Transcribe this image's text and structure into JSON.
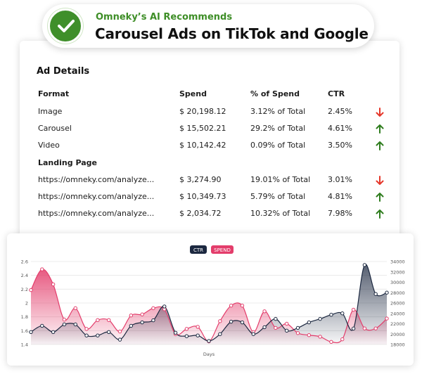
{
  "header": {
    "kicker": "Omneky’s AI Recommends",
    "title": "Carousel Ads on TikTok and Google"
  },
  "ad_details": {
    "title": "Ad Details",
    "columns": [
      "Format",
      "Spend",
      "% of Spend",
      "CTR"
    ],
    "rows": [
      {
        "name": "Image",
        "spend": "$ 20,198.12",
        "pct": "3.12% of Total",
        "ctr": "2.45%",
        "trend": "down"
      },
      {
        "name": "Carousel",
        "spend": "$ 15,502.21",
        "pct": "29.2% of Total",
        "ctr": "4.61%",
        "trend": "up"
      },
      {
        "name": "Video",
        "spend": "$ 10,142.42",
        "pct": "0.09% of Total",
        "ctr": "3.50%",
        "trend": "up"
      }
    ],
    "landing_label": "Landing Page",
    "landing_rows": [
      {
        "name": "https://omneky.com/analyze...",
        "spend": "$ 3,274.90",
        "pct": "19.01% of Total",
        "ctr": "3.01%",
        "trend": "down"
      },
      {
        "name": "https://omneky.com/analyze...",
        "spend": "$ 10,349.73",
        "pct": "5.79% of Total",
        "ctr": "4.81%",
        "trend": "up"
      },
      {
        "name": "https://omneky.com/analyze...",
        "spend": "$ 2,034.72",
        "pct": "10.32% of Total",
        "ctr": "7.98%",
        "trend": "up"
      }
    ]
  },
  "colors": {
    "up": "#2f7d1e",
    "down": "#e5372a",
    "ctr": "#1c2840",
    "spend": "#e33d6b",
    "check": "#3f8f2a"
  },
  "chart_data": {
    "type": "area",
    "xlabel": "Days",
    "ylabel": "",
    "legend": [
      "CTR",
      "SPEND"
    ],
    "legend_position": "top-center",
    "grid": true,
    "ylim_left": [
      1.4,
      2.6
    ],
    "yticks_left": [
      "2.6",
      "2.4",
      "2.2",
      "2",
      "1.8",
      "1.6",
      "1.4"
    ],
    "ylim_right": [
      18000,
      34000
    ],
    "yticks_right": [
      "34000",
      "32000",
      "30000",
      "28000",
      "26000",
      "24000",
      "22000",
      "20000",
      "18000"
    ],
    "series": [
      {
        "name": "CTR",
        "axis": "left",
        "values": [
          1.58,
          1.67,
          1.58,
          1.69,
          1.69,
          1.53,
          1.53,
          1.58,
          1.47,
          1.67,
          1.72,
          1.75,
          1.95,
          1.57,
          1.52,
          1.53,
          1.45,
          1.55,
          1.73,
          1.72,
          1.55,
          1.65,
          1.77,
          1.6,
          1.64,
          1.72,
          1.77,
          1.83,
          1.85,
          1.63,
          2.55,
          2.13,
          2.15
        ]
      },
      {
        "name": "SPEND",
        "axis": "right",
        "values": [
          28500,
          32500,
          29600,
          22800,
          25000,
          21000,
          22700,
          22700,
          20500,
          23600,
          23800,
          25000,
          24800,
          20000,
          21000,
          21400,
          18600,
          22500,
          25500,
          25500,
          20400,
          24400,
          21200,
          22000,
          20200,
          19800,
          19500,
          18500,
          19000,
          24700,
          21100,
          21100,
          23000
        ]
      }
    ]
  }
}
